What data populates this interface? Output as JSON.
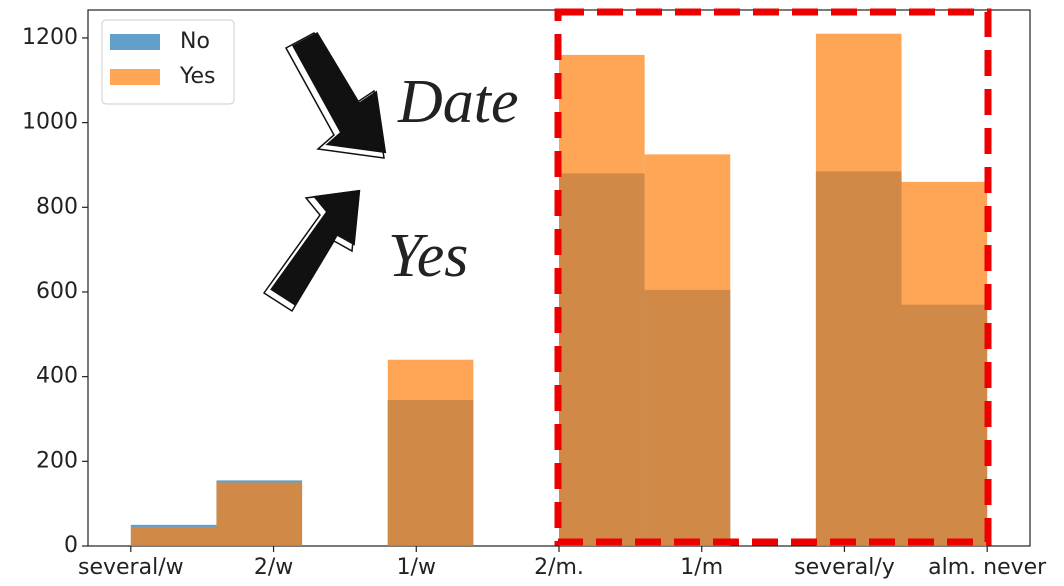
{
  "chart_data": {
    "type": "histogram",
    "bins": [
      0,
      0.6,
      1.2,
      1.8,
      2.4,
      3.0,
      3.6,
      4.2,
      4.8,
      5.4,
      6.0
    ],
    "series": [
      {
        "name": "No",
        "color": "#1f77b4",
        "values": [
          50,
          155,
          0,
          345,
          0,
          880,
          605,
          0,
          885,
          570
        ]
      },
      {
        "name": "Yes",
        "color": "#ff7f0e",
        "values": [
          45,
          150,
          0,
          440,
          0,
          1160,
          925,
          0,
          1210,
          860
        ]
      }
    ],
    "xlim": [
      -0.3,
      6.3
    ],
    "xticks": [
      {
        "value": 0,
        "label": "several/w"
      },
      {
        "value": 1,
        "label": "2/w"
      },
      {
        "value": 2,
        "label": "1/w"
      },
      {
        "value": 3,
        "label": "2/m."
      },
      {
        "value": 4,
        "label": "1/m"
      },
      {
        "value": 5,
        "label": "several/y"
      },
      {
        "value": 6,
        "label": "alm. never"
      }
    ],
    "ylim": [
      0,
      1266
    ],
    "yticks": [
      0,
      200,
      400,
      600,
      800,
      1000,
      1200
    ],
    "legend": "upper left",
    "annotations": [
      "Date",
      "Yes"
    ]
  }
}
